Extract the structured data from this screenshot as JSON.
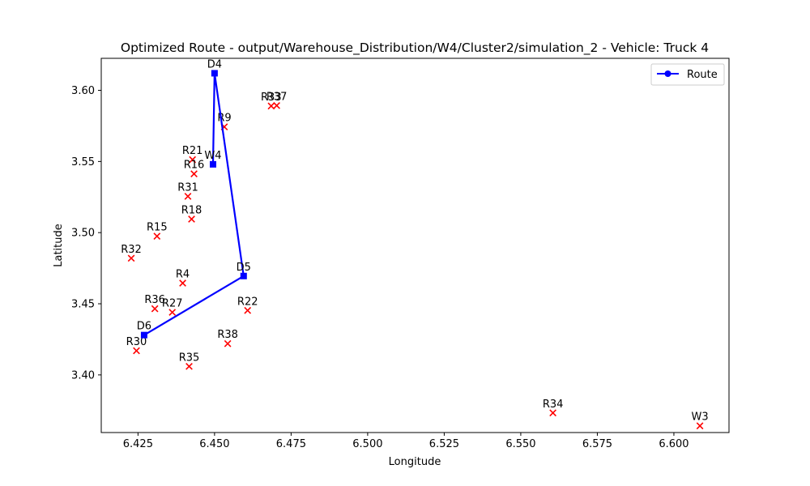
{
  "chart_data": {
    "type": "scatter",
    "title": "Optimized Route - output/Warehouse_Distribution/W4/Cluster2/simulation_2 - Vehicle: Truck 4",
    "xlabel": "Longitude",
    "ylabel": "Latitude",
    "xlim": [
      6.413,
      6.618
    ],
    "ylim": [
      3.3595,
      3.6225
    ],
    "xticks": [
      "6.425",
      "6.450",
      "6.475",
      "6.500",
      "6.525",
      "6.550",
      "6.575",
      "6.600"
    ],
    "yticks": [
      "3.40",
      "3.45",
      "3.50",
      "3.55",
      "3.60"
    ],
    "grid": false,
    "legend_position": "top-right",
    "route": {
      "name": "Route",
      "color": "#0000ff",
      "points": [
        {
          "label": "W4",
          "x": 6.4495,
          "y": 3.548
        },
        {
          "label": "D4",
          "x": 6.45,
          "y": 3.612
        },
        {
          "label": "D5",
          "x": 6.4595,
          "y": 3.4695
        },
        {
          "label": "D6",
          "x": 6.427,
          "y": 3.428
        }
      ]
    },
    "points": {
      "marker": "x",
      "color": "#ff0000",
      "items": [
        {
          "label": "R33",
          "x": 6.4685,
          "y": 3.589
        },
        {
          "label": "R37",
          "x": 6.4703,
          "y": 3.5893
        },
        {
          "label": "R9",
          "x": 6.4532,
          "y": 3.5743
        },
        {
          "label": "R21",
          "x": 6.4428,
          "y": 3.5513
        },
        {
          "label": "R16",
          "x": 6.4433,
          "y": 3.5413
        },
        {
          "label": "R31",
          "x": 6.4413,
          "y": 3.5255
        },
        {
          "label": "R18",
          "x": 6.4425,
          "y": 3.5095
        },
        {
          "label": "R15",
          "x": 6.4312,
          "y": 3.4975
        },
        {
          "label": "R32",
          "x": 6.4228,
          "y": 3.482
        },
        {
          "label": "R4",
          "x": 6.4396,
          "y": 3.4645
        },
        {
          "label": "R36",
          "x": 6.4305,
          "y": 3.4465
        },
        {
          "label": "R27",
          "x": 6.4362,
          "y": 3.444
        },
        {
          "label": "R22",
          "x": 6.4608,
          "y": 3.4453
        },
        {
          "label": "R30",
          "x": 6.4245,
          "y": 3.417
        },
        {
          "label": "R38",
          "x": 6.4543,
          "y": 3.422
        },
        {
          "label": "R35",
          "x": 6.4417,
          "y": 3.406
        },
        {
          "label": "R34",
          "x": 6.5605,
          "y": 3.3733
        },
        {
          "label": "W3",
          "x": 6.6085,
          "y": 3.3642
        }
      ]
    }
  }
}
